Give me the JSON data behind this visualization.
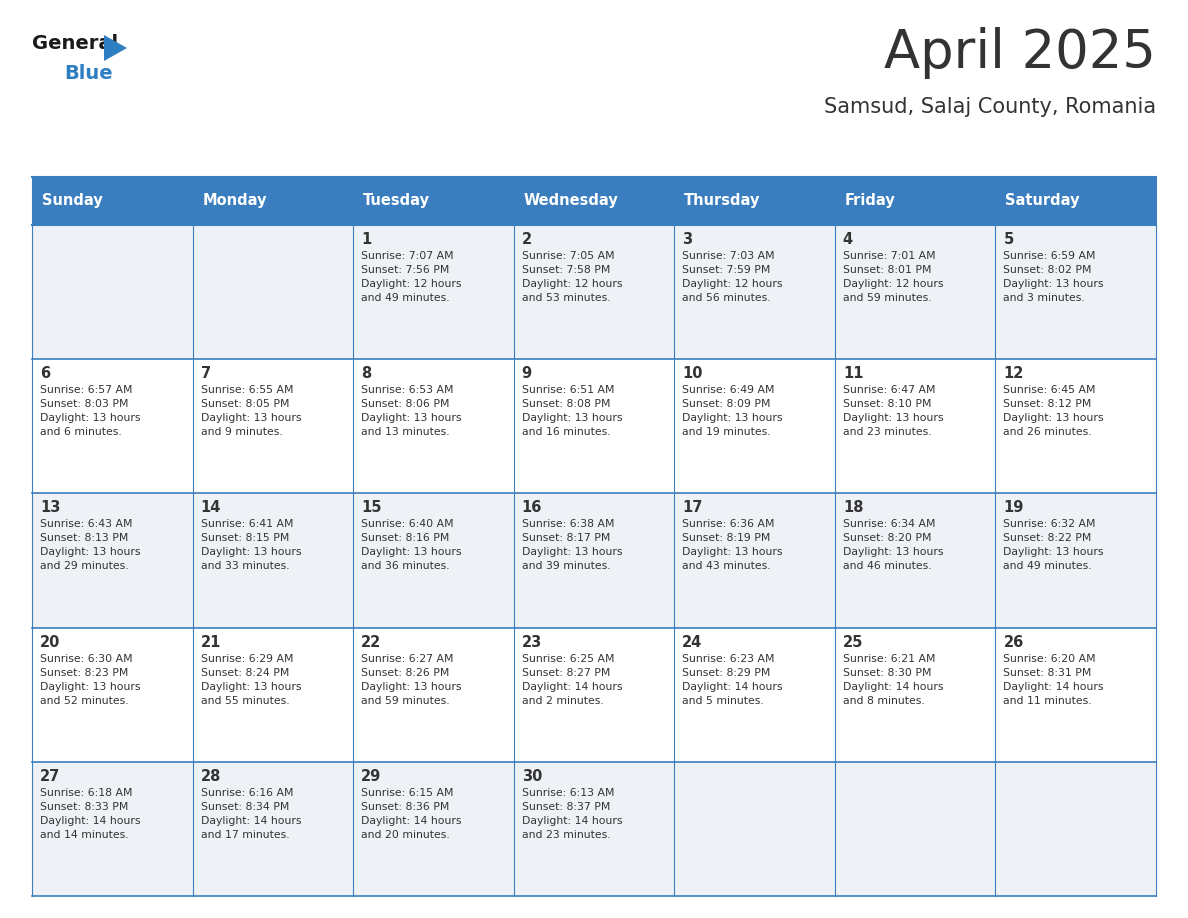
{
  "title": "April 2025",
  "subtitle": "Samsud, Salaj County, Romania",
  "header_bg": "#3a7ebf",
  "header_text_color": "#ffffff",
  "cell_bg_light": "#eef2f7",
  "cell_bg_white": "#ffffff",
  "border_color": "#3a7ebf",
  "text_color": "#333333",
  "days_of_week": [
    "Sunday",
    "Monday",
    "Tuesday",
    "Wednesday",
    "Thursday",
    "Friday",
    "Saturday"
  ],
  "calendar": [
    [
      {
        "day": "",
        "info": ""
      },
      {
        "day": "",
        "info": ""
      },
      {
        "day": "1",
        "info": "Sunrise: 7:07 AM\nSunset: 7:56 PM\nDaylight: 12 hours\nand 49 minutes."
      },
      {
        "day": "2",
        "info": "Sunrise: 7:05 AM\nSunset: 7:58 PM\nDaylight: 12 hours\nand 53 minutes."
      },
      {
        "day": "3",
        "info": "Sunrise: 7:03 AM\nSunset: 7:59 PM\nDaylight: 12 hours\nand 56 minutes."
      },
      {
        "day": "4",
        "info": "Sunrise: 7:01 AM\nSunset: 8:01 PM\nDaylight: 12 hours\nand 59 minutes."
      },
      {
        "day": "5",
        "info": "Sunrise: 6:59 AM\nSunset: 8:02 PM\nDaylight: 13 hours\nand 3 minutes."
      }
    ],
    [
      {
        "day": "6",
        "info": "Sunrise: 6:57 AM\nSunset: 8:03 PM\nDaylight: 13 hours\nand 6 minutes."
      },
      {
        "day": "7",
        "info": "Sunrise: 6:55 AM\nSunset: 8:05 PM\nDaylight: 13 hours\nand 9 minutes."
      },
      {
        "day": "8",
        "info": "Sunrise: 6:53 AM\nSunset: 8:06 PM\nDaylight: 13 hours\nand 13 minutes."
      },
      {
        "day": "9",
        "info": "Sunrise: 6:51 AM\nSunset: 8:08 PM\nDaylight: 13 hours\nand 16 minutes."
      },
      {
        "day": "10",
        "info": "Sunrise: 6:49 AM\nSunset: 8:09 PM\nDaylight: 13 hours\nand 19 minutes."
      },
      {
        "day": "11",
        "info": "Sunrise: 6:47 AM\nSunset: 8:10 PM\nDaylight: 13 hours\nand 23 minutes."
      },
      {
        "day": "12",
        "info": "Sunrise: 6:45 AM\nSunset: 8:12 PM\nDaylight: 13 hours\nand 26 minutes."
      }
    ],
    [
      {
        "day": "13",
        "info": "Sunrise: 6:43 AM\nSunset: 8:13 PM\nDaylight: 13 hours\nand 29 minutes."
      },
      {
        "day": "14",
        "info": "Sunrise: 6:41 AM\nSunset: 8:15 PM\nDaylight: 13 hours\nand 33 minutes."
      },
      {
        "day": "15",
        "info": "Sunrise: 6:40 AM\nSunset: 8:16 PM\nDaylight: 13 hours\nand 36 minutes."
      },
      {
        "day": "16",
        "info": "Sunrise: 6:38 AM\nSunset: 8:17 PM\nDaylight: 13 hours\nand 39 minutes."
      },
      {
        "day": "17",
        "info": "Sunrise: 6:36 AM\nSunset: 8:19 PM\nDaylight: 13 hours\nand 43 minutes."
      },
      {
        "day": "18",
        "info": "Sunrise: 6:34 AM\nSunset: 8:20 PM\nDaylight: 13 hours\nand 46 minutes."
      },
      {
        "day": "19",
        "info": "Sunrise: 6:32 AM\nSunset: 8:22 PM\nDaylight: 13 hours\nand 49 minutes."
      }
    ],
    [
      {
        "day": "20",
        "info": "Sunrise: 6:30 AM\nSunset: 8:23 PM\nDaylight: 13 hours\nand 52 minutes."
      },
      {
        "day": "21",
        "info": "Sunrise: 6:29 AM\nSunset: 8:24 PM\nDaylight: 13 hours\nand 55 minutes."
      },
      {
        "day": "22",
        "info": "Sunrise: 6:27 AM\nSunset: 8:26 PM\nDaylight: 13 hours\nand 59 minutes."
      },
      {
        "day": "23",
        "info": "Sunrise: 6:25 AM\nSunset: 8:27 PM\nDaylight: 14 hours\nand 2 minutes."
      },
      {
        "day": "24",
        "info": "Sunrise: 6:23 AM\nSunset: 8:29 PM\nDaylight: 14 hours\nand 5 minutes."
      },
      {
        "day": "25",
        "info": "Sunrise: 6:21 AM\nSunset: 8:30 PM\nDaylight: 14 hours\nand 8 minutes."
      },
      {
        "day": "26",
        "info": "Sunrise: 6:20 AM\nSunset: 8:31 PM\nDaylight: 14 hours\nand 11 minutes."
      }
    ],
    [
      {
        "day": "27",
        "info": "Sunrise: 6:18 AM\nSunset: 8:33 PM\nDaylight: 14 hours\nand 14 minutes."
      },
      {
        "day": "28",
        "info": "Sunrise: 6:16 AM\nSunset: 8:34 PM\nDaylight: 14 hours\nand 17 minutes."
      },
      {
        "day": "29",
        "info": "Sunrise: 6:15 AM\nSunset: 8:36 PM\nDaylight: 14 hours\nand 20 minutes."
      },
      {
        "day": "30",
        "info": "Sunrise: 6:13 AM\nSunset: 8:37 PM\nDaylight: 14 hours\nand 23 minutes."
      },
      {
        "day": "",
        "info": ""
      },
      {
        "day": "",
        "info": ""
      },
      {
        "day": "",
        "info": ""
      }
    ]
  ],
  "logo_general_color": "#1a1a1a",
  "logo_blue_color": "#2e7ec2",
  "logo_triangle_color": "#2e7ec2"
}
